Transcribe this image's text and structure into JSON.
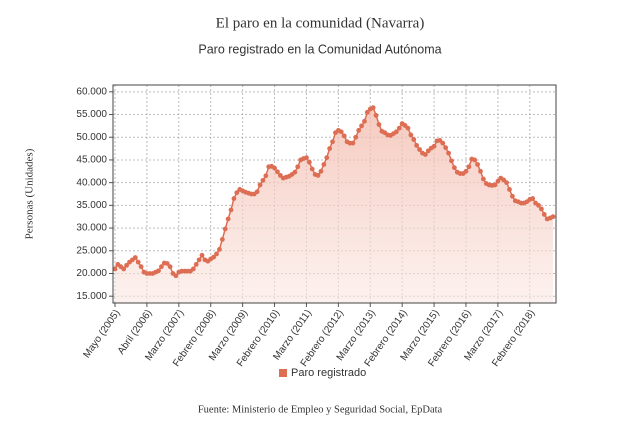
{
  "chart_data": {
    "type": "line",
    "title": "El paro en la comunidad (Navarra)",
    "subtitle": "Paro registrado en la Comunidad Autónoma",
    "y_label": "Personas (Unidades)",
    "source": "Fuente: Ministerio de Empleo y Seguridad Social, EpData",
    "categories": [
      "Mayo (2005)",
      null,
      null,
      null,
      null,
      null,
      null,
      null,
      null,
      null,
      null,
      "Abril (2006)",
      null,
      null,
      null,
      null,
      null,
      null,
      null,
      null,
      null,
      null,
      "Marzo (2007)",
      null,
      null,
      null,
      null,
      null,
      null,
      null,
      null,
      null,
      null,
      "Febrero (2008)",
      null,
      null,
      null,
      null,
      null,
      null,
      null,
      null,
      null,
      null,
      "Marzo (2009)",
      null,
      null,
      null,
      null,
      null,
      null,
      null,
      null,
      null,
      null,
      "Febrero (2010)",
      null,
      null,
      null,
      null,
      null,
      null,
      null,
      null,
      null,
      null,
      "Marzo (2011)",
      null,
      null,
      null,
      null,
      null,
      null,
      null,
      null,
      null,
      null,
      "Febrero (2012)",
      null,
      null,
      null,
      null,
      null,
      null,
      null,
      null,
      null,
      null,
      "Marzo (2013)",
      null,
      null,
      null,
      null,
      null,
      null,
      null,
      null,
      null,
      null,
      "Febrero (2014)",
      null,
      null,
      null,
      null,
      null,
      null,
      null,
      null,
      null,
      null,
      "Marzo (2015)",
      null,
      null,
      null,
      null,
      null,
      null,
      null,
      null,
      null,
      null,
      "Febrero (2016)",
      null,
      null,
      null,
      null,
      null,
      null,
      null,
      null,
      null,
      null,
      "Marzo (2017)",
      null,
      null,
      null,
      null,
      null,
      null,
      null,
      null,
      null,
      null,
      "Febrero (2018)",
      null,
      null,
      null,
      null,
      null,
      null,
      null,
      null
    ],
    "series": [
      {
        "name": "Paro registrado",
        "color": "#dd6e54",
        "values": [
          21000,
          22000,
          21500,
          21000,
          21800,
          22500,
          23000,
          23500,
          22500,
          21500,
          20300,
          20000,
          20000,
          20000,
          20300,
          20600,
          21500,
          22300,
          22200,
          21500,
          20000,
          19500,
          20300,
          20500,
          20500,
          20500,
          20500,
          21000,
          22000,
          23000,
          24000,
          23000,
          22700,
          23200,
          23600,
          24300,
          25300,
          27500,
          29800,
          32000,
          34000,
          36500,
          37800,
          38500,
          38200,
          37900,
          37700,
          37500,
          37500,
          38000,
          39500,
          40500,
          41500,
          43500,
          43600,
          43200,
          42400,
          41600,
          41000,
          41200,
          41400,
          41800,
          42300,
          43500,
          45000,
          45300,
          45500,
          44500,
          43000,
          41800,
          41600,
          42500,
          44000,
          45500,
          47500,
          49000,
          51000,
          51500,
          51200,
          50300,
          49000,
          48700,
          48700,
          50000,
          51500,
          52500,
          53500,
          55500,
          56200,
          56500,
          54800,
          52800,
          51300,
          51000,
          50500,
          50400,
          50800,
          51200,
          52000,
          53000,
          52600,
          52000,
          50500,
          49500,
          48200,
          47300,
          46500,
          46200,
          47000,
          47600,
          48000,
          49200,
          49300,
          48700,
          47700,
          46500,
          44800,
          43300,
          42300,
          42000,
          42000,
          42500,
          43500,
          45200,
          45000,
          44000,
          42500,
          40800,
          39800,
          39500,
          39400,
          39500,
          40300,
          41000,
          40600,
          40000,
          38500,
          37000,
          36000,
          35800,
          35500,
          35500,
          35800,
          36300,
          36500,
          35500,
          35000,
          34200,
          33000,
          32000,
          32200,
          32500
        ]
      }
    ],
    "ylim": [
      13500,
      61500
    ],
    "yticks": [
      {
        "value": 15000,
        "label": "15.000"
      },
      {
        "value": 20000,
        "label": "20.000"
      },
      {
        "value": 25000,
        "label": "25.000"
      },
      {
        "value": 30000,
        "label": "30.000"
      },
      {
        "value": 35000,
        "label": "35.000"
      },
      {
        "value": 40000,
        "label": "40.000"
      },
      {
        "value": 45000,
        "label": "45.000"
      },
      {
        "value": 50000,
        "label": "50.000"
      },
      {
        "value": 55000,
        "label": "55.000"
      },
      {
        "value": 60000,
        "label": "60.000"
      }
    ],
    "grid": true,
    "legend": "bottom"
  }
}
